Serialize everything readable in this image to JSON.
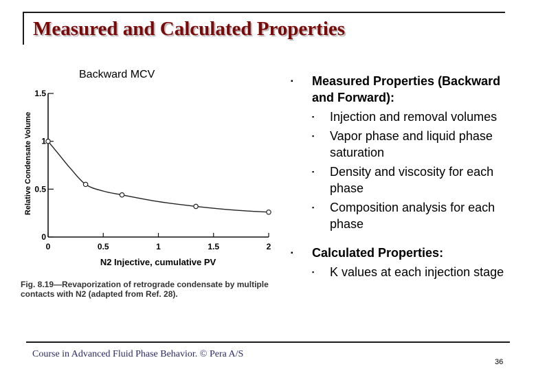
{
  "slide": {
    "title": "Measured and Calculated Properties",
    "chart_label": "Backward MCV",
    "caption": "Fig. 8.19—Revaporization of retrograde condensate by multiple contacts with N2 (adapted from Ref. 28).",
    "bullets": [
      {
        "text": "Measured Properties (Backward and Forward):",
        "sub": [
          "Injection and removal volumes",
          "Vapor phase and liquid phase saturation",
          "Density and viscosity for each phase",
          "Composition analysis for each phase"
        ]
      },
      {
        "text": "Calculated Properties:",
        "sub": [
          "K values at each injection stage"
        ]
      }
    ],
    "footer": "Course in Advanced Fluid Phase Behavior. © Pera A/S",
    "page_number": "36",
    "colors": {
      "title": "#7a0a0a",
      "footer": "#2a2a66"
    }
  },
  "chart_data": {
    "type": "scatter",
    "xlabel": "N2 Injective, cumulative PV",
    "ylabel": "Relative Condensate Volume",
    "xlim": [
      0,
      2
    ],
    "ylim": [
      0,
      1.5
    ],
    "x_ticks": [
      "0",
      "0.5",
      "1",
      "1.5",
      "2"
    ],
    "y_ticks": [
      "0",
      "0.5",
      "1",
      "1.5"
    ],
    "grid": false,
    "series": [
      {
        "x": [
          0,
          0.34,
          0.67,
          1.34,
          2.0
        ],
        "y": [
          1.0,
          0.55,
          0.44,
          0.32,
          0.26
        ],
        "curve": [
          [
            0,
            1.0
          ],
          [
            0.1,
            0.86
          ],
          [
            0.2,
            0.72
          ],
          [
            0.34,
            0.55
          ],
          [
            0.5,
            0.48
          ],
          [
            0.67,
            0.44
          ],
          [
            1.0,
            0.37
          ],
          [
            1.34,
            0.32
          ],
          [
            1.7,
            0.28
          ],
          [
            2.0,
            0.26
          ]
        ]
      }
    ]
  }
}
